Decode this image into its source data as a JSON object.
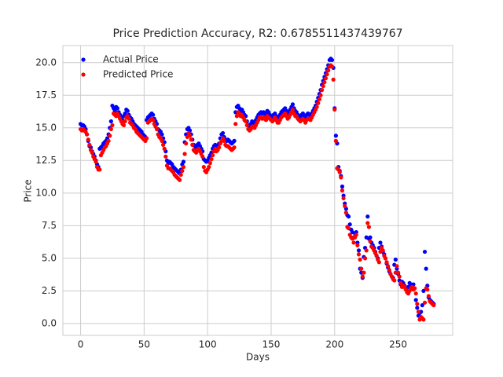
{
  "chart_data": {
    "type": "scatter",
    "title": "Price Prediction Accuracy, R2: 0.6785511437439767",
    "xlabel": "Days",
    "ylabel": "Price",
    "grid": true,
    "legend": "upper left",
    "xlim": [
      -13.95,
      292.95
    ],
    "ylim": [
      -0.91,
      21.31
    ],
    "xticks": [
      0,
      50,
      100,
      150,
      200,
      250
    ],
    "yticks": [
      {
        "value": 0,
        "label": "0.0"
      },
      2.5,
      {
        "value": 5,
        "label": "5.0"
      },
      7.5,
      {
        "value": 10,
        "label": "10.0"
      },
      12.5,
      {
        "value": 15,
        "label": "15.0"
      },
      17.5,
      {
        "value": 20,
        "label": "20.0"
      }
    ],
    "x": [
      0,
      1,
      2,
      3,
      4,
      5,
      6,
      7,
      8,
      9,
      10,
      11,
      12,
      13,
      14,
      15,
      16,
      17,
      18,
      19,
      20,
      21,
      22,
      23,
      24,
      25,
      26,
      27,
      28,
      29,
      30,
      31,
      32,
      33,
      34,
      35,
      36,
      37,
      38,
      39,
      40,
      41,
      42,
      43,
      44,
      45,
      46,
      47,
      48,
      49,
      50,
      51,
      52,
      53,
      54,
      55,
      56,
      57,
      58,
      59,
      60,
      61,
      62,
      63,
      64,
      65,
      66,
      67,
      68,
      69,
      70,
      71,
      72,
      73,
      74,
      75,
      76,
      77,
      78,
      79,
      80,
      81,
      82,
      83,
      84,
      85,
      86,
      87,
      88,
      89,
      90,
      91,
      92,
      93,
      94,
      95,
      96,
      97,
      98,
      99,
      100,
      101,
      102,
      103,
      104,
      105,
      106,
      107,
      108,
      109,
      110,
      111,
      112,
      113,
      114,
      115,
      116,
      117,
      118,
      119,
      120,
      121,
      122,
      123,
      124,
      125,
      126,
      127,
      128,
      129,
      130,
      131,
      132,
      133,
      134,
      135,
      136,
      137,
      138,
      139,
      140,
      141,
      142,
      143,
      144,
      145,
      146,
      147,
      148,
      149,
      150,
      151,
      152,
      153,
      154,
      155,
      156,
      157,
      158,
      159,
      160,
      161,
      162,
      163,
      164,
      165,
      166,
      167,
      168,
      169,
      170,
      171,
      172,
      173,
      174,
      175,
      176,
      177,
      178,
      179,
      180,
      181,
      182,
      183,
      184,
      185,
      186,
      187,
      188,
      189,
      190,
      191,
      192,
      193,
      194,
      195,
      196,
      197,
      198,
      199,
      200,
      201,
      202,
      203,
      204,
      205,
      206,
      207,
      208,
      209,
      210,
      211,
      212,
      213,
      214,
      215,
      216,
      217,
      218,
      219,
      220,
      221,
      222,
      223,
      224,
      225,
      226,
      227,
      228,
      229,
      230,
      231,
      232,
      233,
      234,
      235,
      236,
      237,
      238,
      239,
      240,
      241,
      242,
      243,
      244,
      245,
      246,
      247,
      248,
      249,
      250,
      251,
      252,
      253,
      254,
      255,
      256,
      257,
      258,
      259,
      260,
      261,
      262,
      263,
      264,
      265,
      266,
      267,
      268,
      269,
      270,
      271,
      272,
      273,
      274,
      275,
      276,
      277,
      278
    ],
    "series": [
      {
        "name": "Actual Price",
        "color": "#0000ff",
        "values": [
          15.3,
          15.2,
          15.2,
          15.1,
          14.9,
          14.5,
          14.0,
          13.6,
          13.5,
          13.2,
          13.0,
          12.8,
          12.5,
          12.2,
          12.0,
          13.4,
          13.5,
          13.6,
          13.8,
          13.9,
          14.0,
          14.2,
          14.5,
          15.0,
          15.5,
          16.7,
          16.5,
          16.3,
          16.6,
          16.5,
          16.2,
          16.0,
          15.8,
          15.6,
          15.9,
          16.1,
          16.4,
          16.3,
          16.0,
          15.8,
          15.7,
          15.5,
          15.3,
          15.2,
          15.1,
          15.0,
          14.9,
          14.8,
          14.7,
          14.5,
          14.4,
          14.3,
          15.6,
          15.8,
          15.9,
          16.0,
          16.1,
          16.0,
          15.7,
          15.5,
          15.3,
          14.9,
          14.8,
          14.7,
          14.5,
          14.2,
          13.9,
          13.2,
          12.5,
          12.3,
          12.4,
          12.3,
          12.2,
          12.0,
          11.9,
          11.8,
          11.7,
          11.6,
          11.5,
          11.8,
          12.2,
          12.4,
          13.9,
          14.5,
          14.9,
          15.0,
          14.8,
          14.5,
          14.1,
          13.7,
          13.6,
          13.5,
          13.7,
          13.8,
          13.6,
          13.4,
          13.2,
          12.6,
          12.5,
          12.4,
          12.5,
          12.7,
          12.9,
          13.1,
          13.4,
          13.6,
          13.7,
          13.5,
          13.6,
          13.8,
          14.2,
          14.5,
          14.6,
          14.3,
          14.1,
          14.0,
          14.1,
          14.0,
          13.9,
          13.8,
          13.9,
          14.0,
          16.2,
          16.6,
          16.7,
          16.5,
          16.3,
          16.4,
          16.2,
          16.0,
          15.9,
          15.5,
          15.2,
          15.1,
          15.3,
          15.5,
          15.4,
          15.3,
          15.6,
          15.8,
          16.0,
          16.1,
          16.2,
          16.1,
          16.2,
          16.1,
          16.0,
          16.3,
          16.2,
          16.0,
          15.9,
          15.8,
          16.0,
          16.1,
          15.9,
          15.7,
          15.8,
          16.0,
          16.2,
          16.3,
          16.4,
          16.5,
          16.3,
          16.1,
          16.2,
          16.4,
          16.6,
          16.8,
          16.5,
          16.3,
          16.2,
          16.0,
          15.9,
          15.8,
          16.0,
          16.1,
          15.9,
          15.8,
          16.0,
          16.1,
          16.0,
          15.9,
          16.1,
          16.3,
          16.5,
          16.7,
          17.0,
          17.3,
          17.6,
          17.9,
          18.3,
          18.6,
          18.9,
          19.2,
          19.5,
          19.8,
          20.2,
          20.3,
          20.2,
          19.6,
          16.5,
          14.4,
          13.8,
          12.0,
          11.7,
          11.3,
          10.5,
          9.8,
          9.2,
          8.8,
          8.3,
          8.2,
          7.6,
          7.2,
          7.0,
          6.6,
          6.9,
          7.0,
          6.2,
          5.6,
          4.2,
          3.9,
          3.5,
          5.1,
          5.8,
          6.6,
          8.2,
          6.5,
          6.6,
          6.2,
          6.0,
          5.8,
          5.5,
          5.2,
          5.0,
          5.8,
          6.2,
          5.9,
          5.5,
          5.3,
          5.0,
          4.6,
          4.3,
          4.0,
          3.8,
          3.6,
          3.5,
          4.5,
          4.9,
          4.2,
          3.8,
          3.3,
          3.0,
          3.2,
          3.1,
          2.9,
          2.7,
          2.5,
          2.8,
          3.1,
          3.0,
          2.9,
          3.0,
          2.7,
          1.8,
          1.2,
          0.6,
          0.8,
          0.9,
          1.4,
          2.5,
          5.5,
          4.2,
          2.9,
          2.0,
          1.8,
          1.7,
          1.6,
          1.5
        ]
      },
      {
        "name": "Predicted Price",
        "color": "#ff0000",
        "values": [
          14.9,
          14.8,
          14.9,
          14.8,
          14.7,
          14.5,
          14.1,
          13.7,
          13.3,
          13.1,
          12.8,
          12.6,
          12.4,
          12.0,
          11.8,
          11.8,
          12.9,
          13.1,
          13.3,
          13.5,
          13.6,
          13.8,
          14.0,
          14.4,
          14.9,
          15.2,
          16.1,
          16.0,
          15.9,
          16.1,
          15.9,
          15.7,
          15.5,
          15.3,
          15.2,
          15.5,
          15.8,
          15.9,
          15.7,
          15.4,
          15.3,
          15.2,
          15.0,
          14.9,
          14.7,
          14.6,
          14.5,
          14.4,
          14.3,
          14.2,
          14.1,
          14.0,
          14.2,
          15.4,
          15.5,
          15.6,
          15.7,
          15.6,
          15.3,
          15.1,
          14.9,
          14.5,
          14.3,
          14.2,
          14.0,
          13.7,
          13.4,
          12.8,
          12.1,
          11.9,
          11.9,
          11.8,
          11.7,
          11.6,
          11.4,
          11.3,
          11.2,
          11.1,
          11.0,
          11.4,
          11.7,
          12.0,
          13.0,
          13.8,
          14.3,
          14.6,
          14.4,
          14.1,
          13.7,
          13.3,
          13.2,
          13.1,
          13.3,
          13.4,
          13.2,
          13.0,
          12.8,
          12.0,
          11.7,
          11.6,
          11.8,
          12.0,
          12.3,
          12.6,
          12.9,
          13.2,
          13.4,
          13.2,
          13.3,
          13.5,
          13.8,
          14.0,
          14.2,
          14.0,
          13.7,
          13.6,
          13.6,
          13.5,
          13.4,
          13.3,
          13.4,
          13.5,
          15.3,
          15.9,
          16.2,
          16.1,
          15.9,
          16.0,
          15.8,
          15.6,
          15.5,
          15.2,
          14.9,
          14.8,
          14.9,
          15.1,
          15.1,
          15.0,
          15.2,
          15.4,
          15.6,
          15.8,
          15.8,
          15.7,
          15.8,
          15.7,
          15.6,
          15.9,
          15.8,
          15.7,
          15.6,
          15.5,
          15.6,
          15.8,
          15.6,
          15.4,
          15.4,
          15.6,
          15.8,
          15.9,
          16.0,
          16.1,
          15.9,
          15.7,
          15.8,
          16.0,
          16.2,
          16.4,
          16.1,
          15.9,
          15.9,
          15.7,
          15.6,
          15.5,
          15.6,
          15.7,
          15.6,
          15.4,
          15.6,
          15.7,
          15.7,
          15.6,
          15.8,
          16.0,
          16.2,
          16.4,
          16.6,
          16.9,
          17.2,
          17.5,
          17.9,
          18.2,
          18.5,
          18.8,
          19.1,
          19.4,
          19.7,
          19.8,
          19.7,
          18.7,
          16.4,
          14.0,
          11.9,
          11.8,
          11.6,
          11.2,
          10.2,
          9.6,
          9.0,
          8.5,
          7.4,
          7.3,
          6.8,
          6.6,
          6.5,
          6.2,
          6.6,
          6.8,
          6.0,
          5.3,
          4.9,
          4.2,
          3.6,
          3.9,
          5.0,
          5.6,
          7.7,
          7.4,
          6.3,
          5.9,
          5.8,
          5.6,
          5.4,
          5.2,
          4.9,
          4.7,
          5.5,
          5.8,
          5.6,
          5.2,
          5.0,
          4.7,
          4.4,
          4.1,
          3.8,
          3.6,
          3.4,
          3.3,
          3.9,
          4.4,
          3.9,
          3.6,
          3.1,
          2.8,
          2.9,
          2.8,
          2.6,
          2.4,
          2.3,
          2.5,
          2.7,
          2.8,
          2.6,
          2.7,
          2.3,
          1.5,
          0.9,
          0.3,
          0.5,
          0.4,
          0.3,
          1.6,
          2.7,
          2.6,
          2.1,
          1.7,
          1.6,
          1.5,
          1.4
        ]
      }
    ]
  }
}
